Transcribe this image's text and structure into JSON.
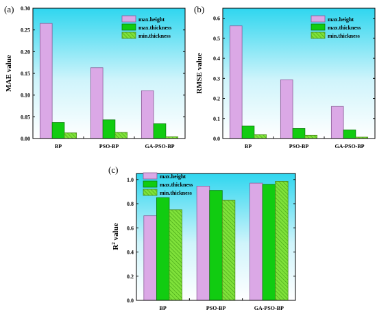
{
  "chart_data": [
    {
      "type": "bar",
      "panel_label": "(a)",
      "ylabel": "MAE value",
      "categories": [
        "BP",
        "PSO-BP",
        "GA-PSO-BP"
      ],
      "ylim": [
        0,
        0.3
      ],
      "yticks": [
        "0.00",
        "0.05",
        "0.10",
        "0.15",
        "0.20",
        "0.25",
        "0.30"
      ],
      "series": [
        {
          "name": "max.height",
          "values": [
            0.265,
            0.163,
            0.11
          ]
        },
        {
          "name": "max.thickness",
          "values": [
            0.037,
            0.043,
            0.034
          ]
        },
        {
          "name": "min.thickness",
          "values": [
            0.013,
            0.014,
            0.004
          ]
        }
      ],
      "legend": "top-right"
    },
    {
      "type": "bar",
      "panel_label": "(b)",
      "ylabel": "RMSE value",
      "categories": [
        "BP",
        "PSO-BP",
        "GA-PSO-BP"
      ],
      "ylim": [
        0,
        0.65
      ],
      "yticks": [
        "0.0",
        "0.1",
        "0.2",
        "0.3",
        "0.4",
        "0.5",
        "0.6"
      ],
      "series": [
        {
          "name": "max.height",
          "values": [
            0.562,
            0.293,
            0.16
          ]
        },
        {
          "name": "max.thickness",
          "values": [
            0.062,
            0.05,
            0.043
          ]
        },
        {
          "name": "min.thickness",
          "values": [
            0.019,
            0.016,
            0.007
          ]
        }
      ],
      "legend": "top-right"
    },
    {
      "type": "bar",
      "panel_label": "(c)",
      "ylabel": "R² value",
      "categories": [
        "BP",
        "PSO-BP",
        "GA-PSO-BP"
      ],
      "ylim": [
        0,
        1.05
      ],
      "yticks": [
        "0.0",
        "0.2",
        "0.4",
        "0.6",
        "0.8",
        "1.0"
      ],
      "series": [
        {
          "name": "max.height",
          "values": [
            0.7,
            0.945,
            0.97
          ]
        },
        {
          "name": "max.thickness",
          "values": [
            0.85,
            0.91,
            0.96
          ]
        },
        {
          "name": "min.thickness",
          "values": [
            0.75,
            0.828,
            0.985
          ]
        }
      ],
      "legend": "top-left"
    }
  ],
  "colors": {
    "max_height": "#dba8e6",
    "max_height_stroke": "#8a5a96",
    "max_thickness": "#11cc11",
    "max_thickness_stroke": "#0a7a0a",
    "min_thickness": "#7fe13a",
    "min_thickness_stroke": "#4a8a1a",
    "bg_top": "#2fd6ef",
    "bg_bottom": "#ffffff"
  }
}
